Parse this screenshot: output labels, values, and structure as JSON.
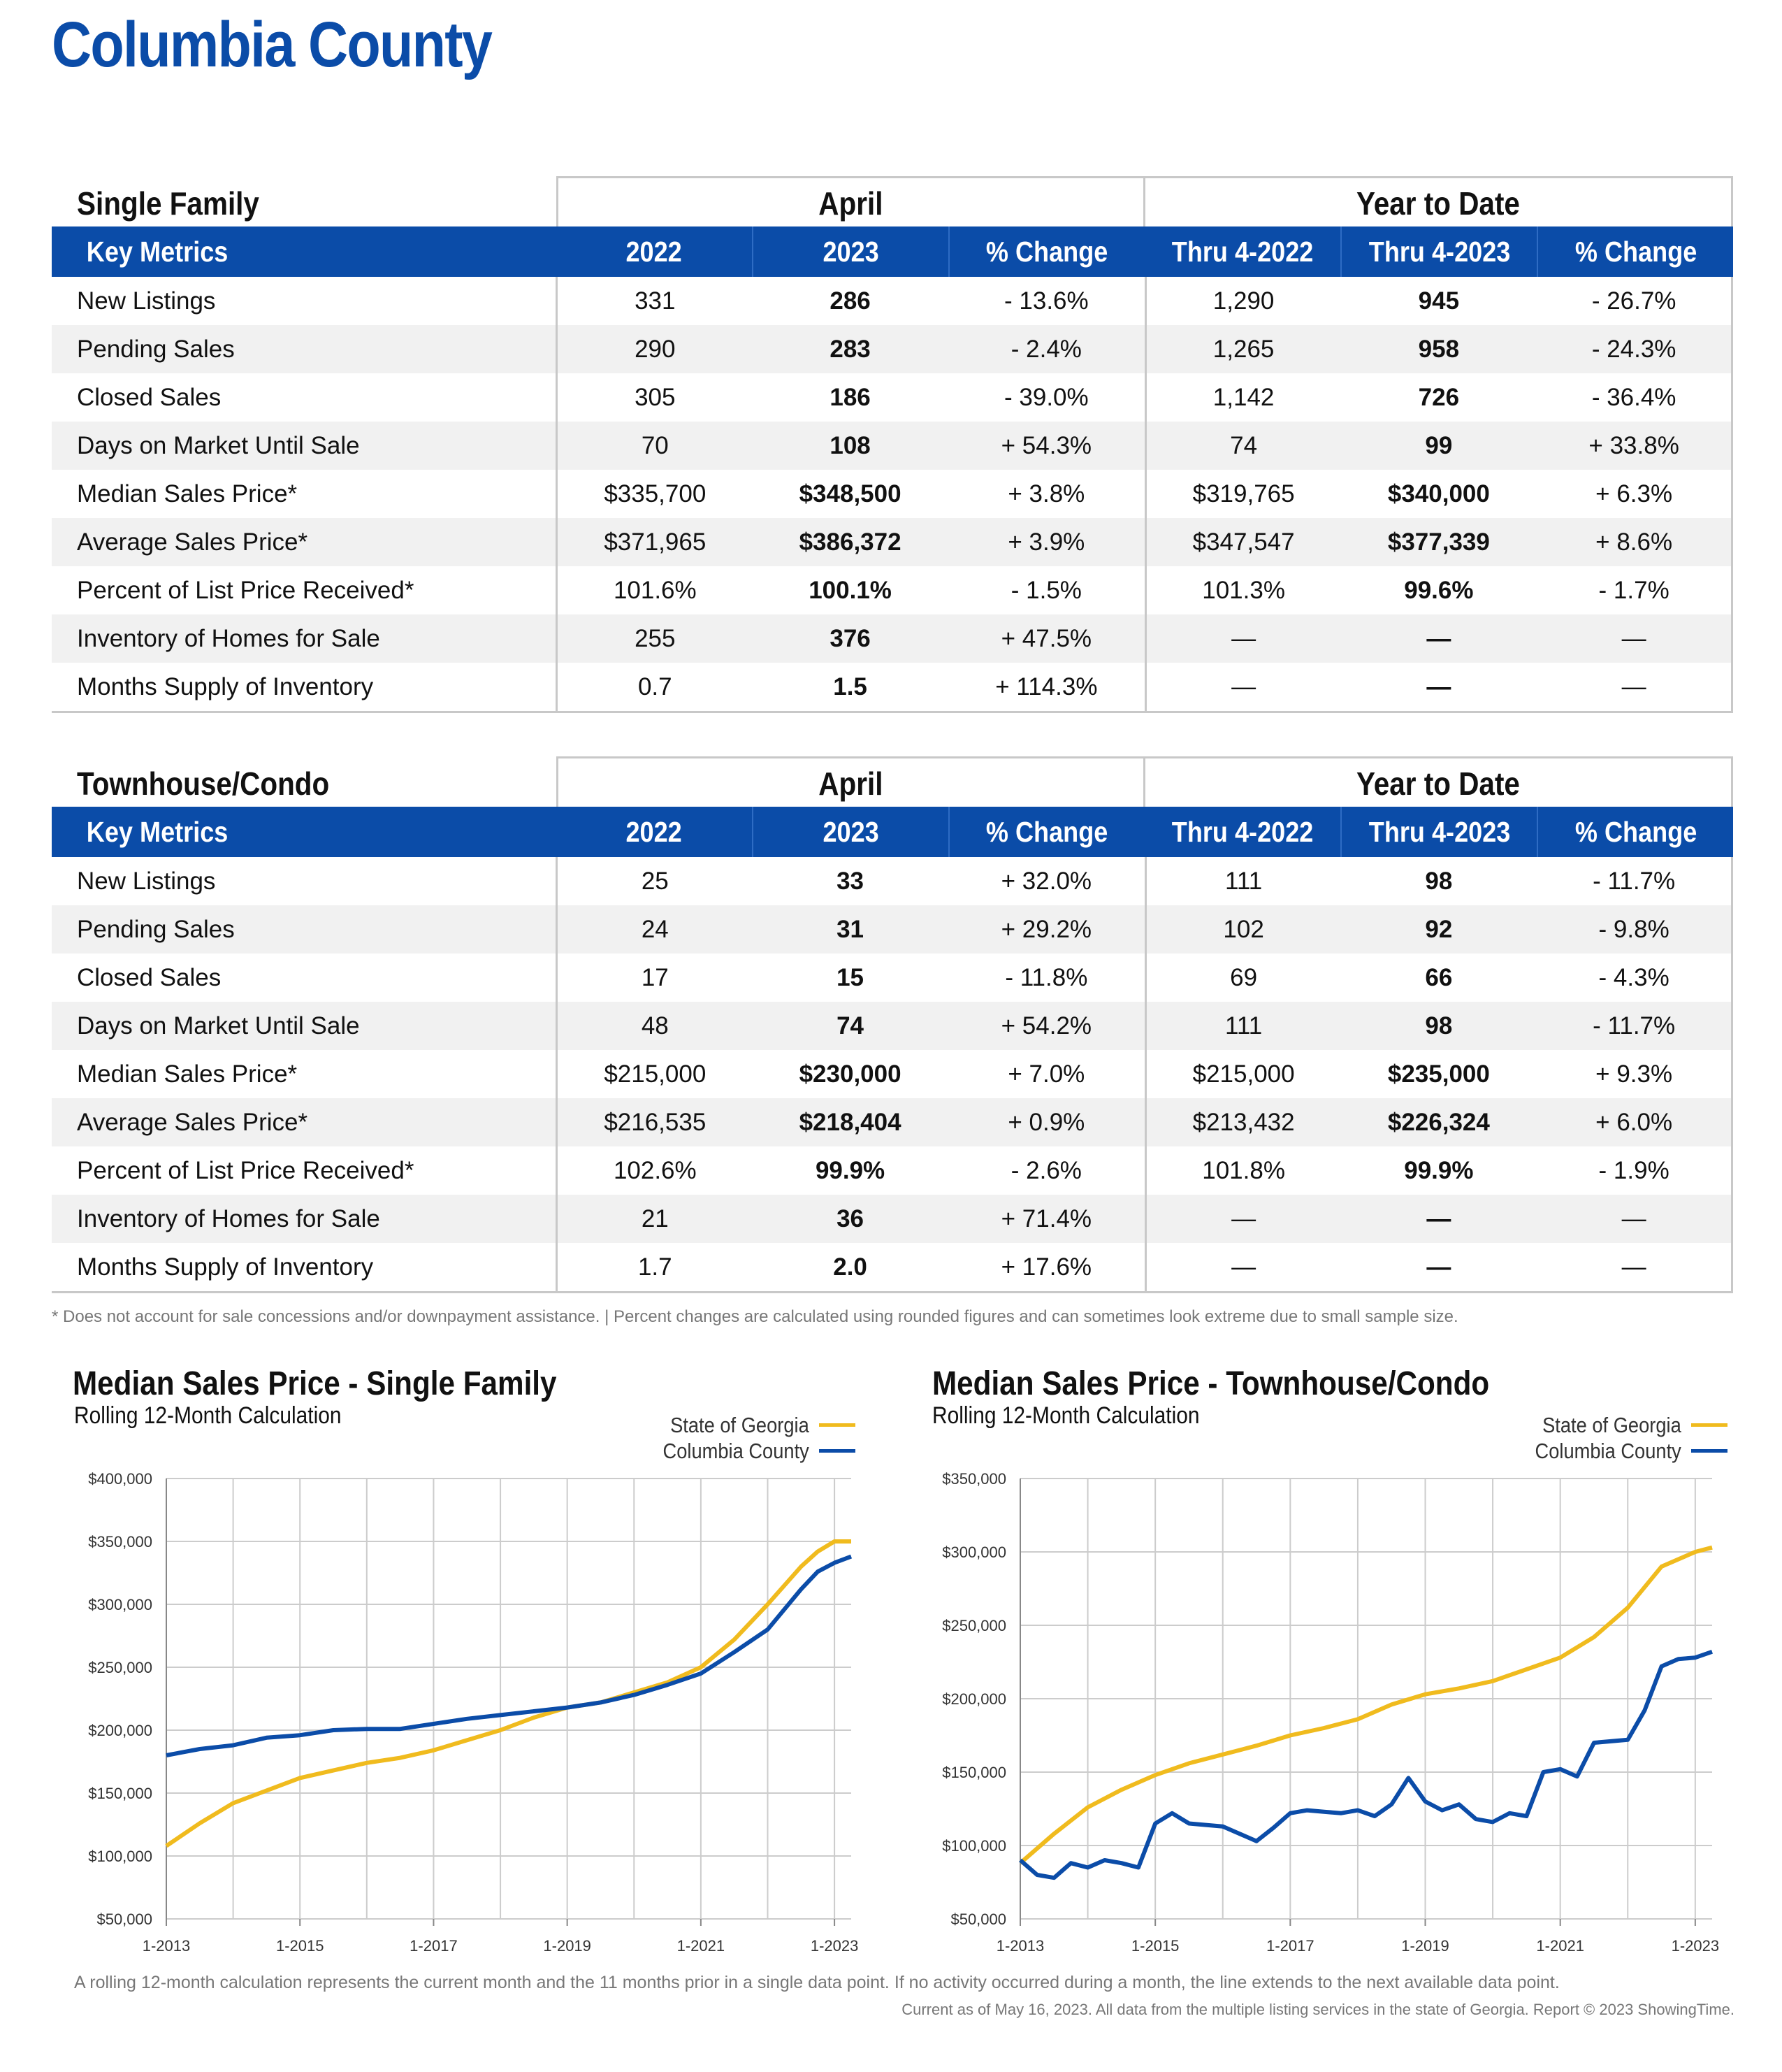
{
  "title": "Columbia County",
  "single_family": {
    "section_label": "Single Family",
    "group_month": "April",
    "group_ytd": "Year to Date",
    "columns": [
      "Key Metrics",
      "2022",
      "2023",
      "% Change",
      "Thru 4-2022",
      "Thru 4-2023",
      "% Change"
    ],
    "rows": [
      [
        "New Listings",
        "331",
        "286",
        "- 13.6%",
        "1,290",
        "945",
        "- 26.7%"
      ],
      [
        "Pending Sales",
        "290",
        "283",
        "- 2.4%",
        "1,265",
        "958",
        "- 24.3%"
      ],
      [
        "Closed Sales",
        "305",
        "186",
        "- 39.0%",
        "1,142",
        "726",
        "- 36.4%"
      ],
      [
        "Days on Market Until Sale",
        "70",
        "108",
        "+ 54.3%",
        "74",
        "99",
        "+ 33.8%"
      ],
      [
        "Median Sales Price*",
        "$335,700",
        "$348,500",
        "+ 3.8%",
        "$319,765",
        "$340,000",
        "+ 6.3%"
      ],
      [
        "Average Sales Price*",
        "$371,965",
        "$386,372",
        "+ 3.9%",
        "$347,547",
        "$377,339",
        "+ 8.6%"
      ],
      [
        "Percent of List Price Received*",
        "101.6%",
        "100.1%",
        "- 1.5%",
        "101.3%",
        "99.6%",
        "- 1.7%"
      ],
      [
        "Inventory of Homes for Sale",
        "255",
        "376",
        "+ 47.5%",
        "—",
        "—",
        "—"
      ],
      [
        "Months Supply of Inventory",
        "0.7",
        "1.5",
        "+ 114.3%",
        "—",
        "—",
        "—"
      ]
    ]
  },
  "townhouse_condo": {
    "section_label": "Townhouse/Condo",
    "group_month": "April",
    "group_ytd": "Year to Date",
    "columns": [
      "Key Metrics",
      "2022",
      "2023",
      "% Change",
      "Thru 4-2022",
      "Thru 4-2023",
      "% Change"
    ],
    "rows": [
      [
        "New Listings",
        "25",
        "33",
        "+ 32.0%",
        "111",
        "98",
        "- 11.7%"
      ],
      [
        "Pending Sales",
        "24",
        "31",
        "+ 29.2%",
        "102",
        "92",
        "- 9.8%"
      ],
      [
        "Closed Sales",
        "17",
        "15",
        "- 11.8%",
        "69",
        "66",
        "- 4.3%"
      ],
      [
        "Days on Market Until Sale",
        "48",
        "74",
        "+ 54.2%",
        "111",
        "98",
        "- 11.7%"
      ],
      [
        "Median Sales Price*",
        "$215,000",
        "$230,000",
        "+ 7.0%",
        "$215,000",
        "$235,000",
        "+ 9.3%"
      ],
      [
        "Average Sales Price*",
        "$216,535",
        "$218,404",
        "+ 0.9%",
        "$213,432",
        "$226,324",
        "+ 6.0%"
      ],
      [
        "Percent of List Price Received*",
        "102.6%",
        "99.9%",
        "- 2.6%",
        "101.8%",
        "99.9%",
        "- 1.9%"
      ],
      [
        "Inventory of Homes for Sale",
        "21",
        "36",
        "+ 71.4%",
        "—",
        "—",
        "—"
      ],
      [
        "Months Supply of Inventory",
        "1.7",
        "2.0",
        "+ 17.6%",
        "—",
        "—",
        "—"
      ]
    ]
  },
  "footnote": "* Does not account for sale concessions and/or downpayment assistance. | Percent changes are calculated using rounded figures and can sometimes look extreme due to small sample size.",
  "colors": {
    "brand_blue": "#0b4ca8",
    "state_gold": "#f0bb1e",
    "county_blue": "#0b4ca8",
    "grid": "#cccccc"
  },
  "chart_data": [
    {
      "type": "line",
      "title": "Median Sales Price - Single Family",
      "subtitle": "Rolling 12-Month Calculation",
      "x_ticks": [
        "1-2013",
        "1-2015",
        "1-2017",
        "1-2019",
        "1-2021",
        "1-2023"
      ],
      "y_ticks": [
        "$50,000",
        "$100,000",
        "$150,000",
        "$200,000",
        "$250,000",
        "$300,000",
        "$350,000",
        "$400,000"
      ],
      "ylim": [
        50000,
        400000
      ],
      "xlim": [
        2013.0,
        2023.25
      ],
      "legend_position": "top-right",
      "grid": true,
      "series": [
        {
          "name": "State of Georgia",
          "color": "#f0bb1e",
          "x": [
            2013.0,
            2013.5,
            2014.0,
            2014.5,
            2015.0,
            2015.5,
            2016.0,
            2016.5,
            2017.0,
            2017.5,
            2018.0,
            2018.5,
            2019.0,
            2019.5,
            2020.0,
            2020.5,
            2021.0,
            2021.5,
            2022.0,
            2022.5,
            2022.75,
            2023.0,
            2023.25
          ],
          "y": [
            108000,
            126000,
            142000,
            152000,
            162000,
            168000,
            174000,
            178000,
            184000,
            192000,
            200000,
            210000,
            218000,
            222000,
            230000,
            238000,
            250000,
            272000,
            300000,
            330000,
            342000,
            350000,
            350000
          ]
        },
        {
          "name": "Columbia County",
          "color": "#0b4ca8",
          "x": [
            2013.0,
            2013.5,
            2014.0,
            2014.5,
            2015.0,
            2015.5,
            2016.0,
            2016.5,
            2017.0,
            2017.5,
            2018.0,
            2018.5,
            2019.0,
            2019.5,
            2020.0,
            2020.5,
            2021.0,
            2021.5,
            2022.0,
            2022.5,
            2022.75,
            2023.0,
            2023.25
          ],
          "y": [
            180000,
            185000,
            188000,
            194000,
            196000,
            200000,
            201000,
            201000,
            205000,
            209000,
            212000,
            215000,
            218000,
            222000,
            228000,
            236000,
            245000,
            262000,
            280000,
            312000,
            326000,
            333000,
            338000
          ]
        }
      ]
    },
    {
      "type": "line",
      "title": "Median Sales Price - Townhouse/Condo",
      "subtitle": "Rolling 12-Month Calculation",
      "x_ticks": [
        "1-2013",
        "1-2015",
        "1-2017",
        "1-2019",
        "1-2021",
        "1-2023"
      ],
      "y_ticks": [
        "$50,000",
        "$100,000",
        "$150,000",
        "$200,000",
        "$250,000",
        "$300,000",
        "$350,000"
      ],
      "ylim": [
        50000,
        350000
      ],
      "xlim": [
        2013.0,
        2023.25
      ],
      "legend_position": "top-right",
      "grid": true,
      "series": [
        {
          "name": "State of Georgia",
          "color": "#f0bb1e",
          "x": [
            2013.0,
            2013.5,
            2014.0,
            2014.5,
            2015.0,
            2015.5,
            2016.0,
            2016.5,
            2017.0,
            2017.5,
            2018.0,
            2018.5,
            2019.0,
            2019.5,
            2020.0,
            2020.5,
            2021.0,
            2021.5,
            2022.0,
            2022.5,
            2023.0,
            2023.25
          ],
          "y": [
            88000,
            108000,
            126000,
            138000,
            148000,
            156000,
            162000,
            168000,
            175000,
            180000,
            186000,
            196000,
            203000,
            207000,
            212000,
            220000,
            228000,
            242000,
            262000,
            290000,
            300000,
            303000
          ]
        },
        {
          "name": "Columbia County",
          "color": "#0b4ca8",
          "x": [
            2013.0,
            2013.25,
            2013.5,
            2013.75,
            2014.0,
            2014.25,
            2014.5,
            2014.75,
            2015.0,
            2015.25,
            2015.5,
            2015.75,
            2016.0,
            2016.25,
            2016.5,
            2016.75,
            2017.0,
            2017.25,
            2017.5,
            2017.75,
            2018.0,
            2018.25,
            2018.5,
            2018.75,
            2019.0,
            2019.25,
            2019.5,
            2019.75,
            2020.0,
            2020.25,
            2020.5,
            2020.75,
            2021.0,
            2021.25,
            2021.5,
            2021.75,
            2022.0,
            2022.25,
            2022.5,
            2022.75,
            2023.0,
            2023.25
          ],
          "y": [
            90000,
            80000,
            78000,
            88000,
            85000,
            90000,
            88000,
            85000,
            115000,
            122000,
            115000,
            114000,
            113000,
            108000,
            103000,
            112000,
            122000,
            124000,
            123000,
            122000,
            124000,
            120000,
            128000,
            146000,
            130000,
            124000,
            128000,
            118000,
            116000,
            122000,
            120000,
            150000,
            152000,
            147000,
            170000,
            171000,
            172000,
            192000,
            222000,
            227000,
            228000,
            232000
          ]
        }
      ]
    }
  ],
  "bottom_note": "A rolling 12-month calculation represents the current month and the 11 months prior in a single data point. If no activity occurred during a month, the line extends to the next available data point.",
  "bottom_credit": "Current as of May 16, 2023. All data from the multiple listing services in the state of Georgia. Report © 2023 ShowingTime."
}
